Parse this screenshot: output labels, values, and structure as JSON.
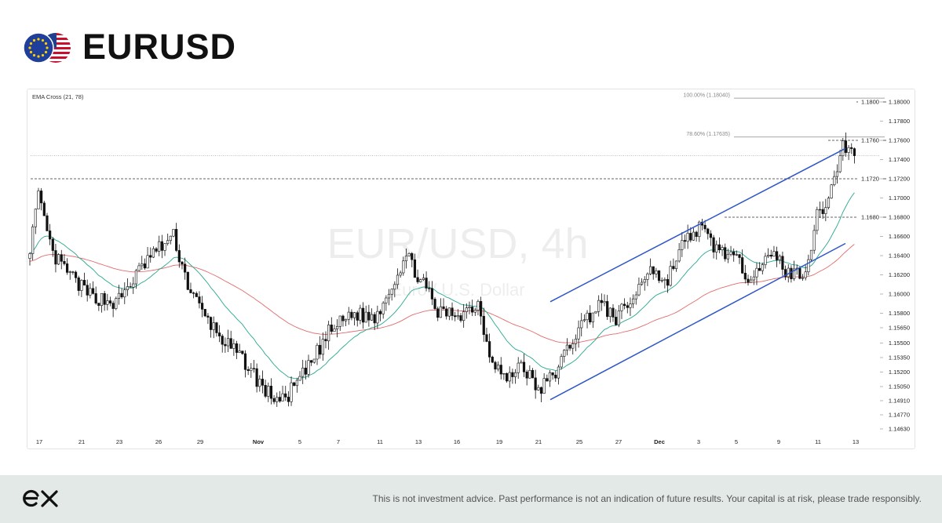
{
  "header": {
    "title": "EURUSD",
    "flag_icons": [
      "eu-flag-icon",
      "us-flag-icon"
    ]
  },
  "footer": {
    "logo_icon": "ex-logo-icon",
    "disclaimer": "This is not investment advice. Past performance is not an indication of future results. Your capital is at risk, please trade responsibly."
  },
  "chart_data": {
    "type": "candlestick",
    "indicator_label": "EMA Cross (21, 78)",
    "watermark": {
      "line1": "EUR/USD, 4h",
      "line2": "Euro / U.S. Dollar"
    },
    "y_ticks": [
      "1.18000",
      "1.17800",
      "1.17600",
      "1.17400",
      "1.17200",
      "1.17000",
      "1.16800",
      "1.16600",
      "1.16400",
      "1.16200",
      "1.16000",
      "1.15800",
      "1.15650",
      "1.15500",
      "1.15350",
      "1.15200",
      "1.15050",
      "1.14910",
      "1.14770",
      "1.14630"
    ],
    "x_ticks": [
      "17",
      "21",
      "23",
      "26",
      "29",
      "Nov",
      "5",
      "7",
      "11",
      "13",
      "16",
      "19",
      "21",
      "25",
      "27",
      "Dec",
      "3",
      "5",
      "9",
      "11",
      "13"
    ],
    "levels": [
      {
        "label": "1.1800",
        "value": 1.18
      },
      {
        "label": "1.1760",
        "value": 1.176
      },
      {
        "label": "1.1720",
        "value": 1.172
      },
      {
        "label": "1.1680",
        "value": 1.168
      }
    ],
    "fib_levels": [
      {
        "label": "100.00% (1.18040)",
        "value": 1.1804
      },
      {
        "label": "78.60% (1.17635)",
        "value": 1.17635
      }
    ],
    "current_price": 1.1744,
    "channel": {
      "upper": [
        {
          "date": "Nov 21",
          "price": 1.1592
        },
        {
          "date": "Dec 11",
          "price": 1.1744
        }
      ],
      "lower": [
        {
          "date": "Nov 21",
          "price": 1.1492
        },
        {
          "date": "Dec 11",
          "price": 1.1645
        }
      ]
    },
    "ema_colors": {
      "ema21": "#27a88e",
      "ema78": "#e36b6b"
    },
    "candle_color": "#111111",
    "channel_color": "#2d55c8",
    "pivots": [
      [
        0,
        1.165
      ],
      [
        3,
        1.17
      ],
      [
        8,
        1.164
      ],
      [
        20,
        1.16
      ],
      [
        30,
        1.159
      ],
      [
        42,
        1.164
      ],
      [
        50,
        1.166
      ],
      [
        55,
        1.161
      ],
      [
        60,
        1.158
      ],
      [
        68,
        1.155
      ],
      [
        75,
        1.153
      ],
      [
        82,
        1.15
      ],
      [
        88,
        1.149
      ],
      [
        96,
        1.152
      ],
      [
        104,
        1.156
      ],
      [
        112,
        1.158
      ],
      [
        120,
        1.1575
      ],
      [
        126,
        1.161
      ],
      [
        131,
        1.164
      ],
      [
        137,
        1.161
      ],
      [
        142,
        1.158
      ],
      [
        150,
        1.158
      ],
      [
        156,
        1.159
      ],
      [
        160,
        1.154
      ],
      [
        166,
        1.151
      ],
      [
        171,
        1.153
      ],
      [
        177,
        1.15
      ],
      [
        183,
        1.152
      ],
      [
        190,
        1.156
      ],
      [
        198,
        1.159
      ],
      [
        204,
        1.1575
      ],
      [
        210,
        1.1595
      ],
      [
        216,
        1.163
      ],
      [
        221,
        1.161
      ],
      [
        227,
        1.165
      ],
      [
        233,
        1.167
      ],
      [
        238,
        1.165
      ],
      [
        244,
        1.164
      ],
      [
        250,
        1.162
      ],
      [
        254,
        1.163
      ],
      [
        260,
        1.164
      ],
      [
        264,
        1.162
      ],
      [
        270,
        1.1625
      ],
      [
        274,
        1.168
      ],
      [
        278,
        1.17
      ],
      [
        283,
        1.1755
      ],
      [
        285,
        1.175
      ],
      [
        287,
        1.1744
      ]
    ]
  }
}
